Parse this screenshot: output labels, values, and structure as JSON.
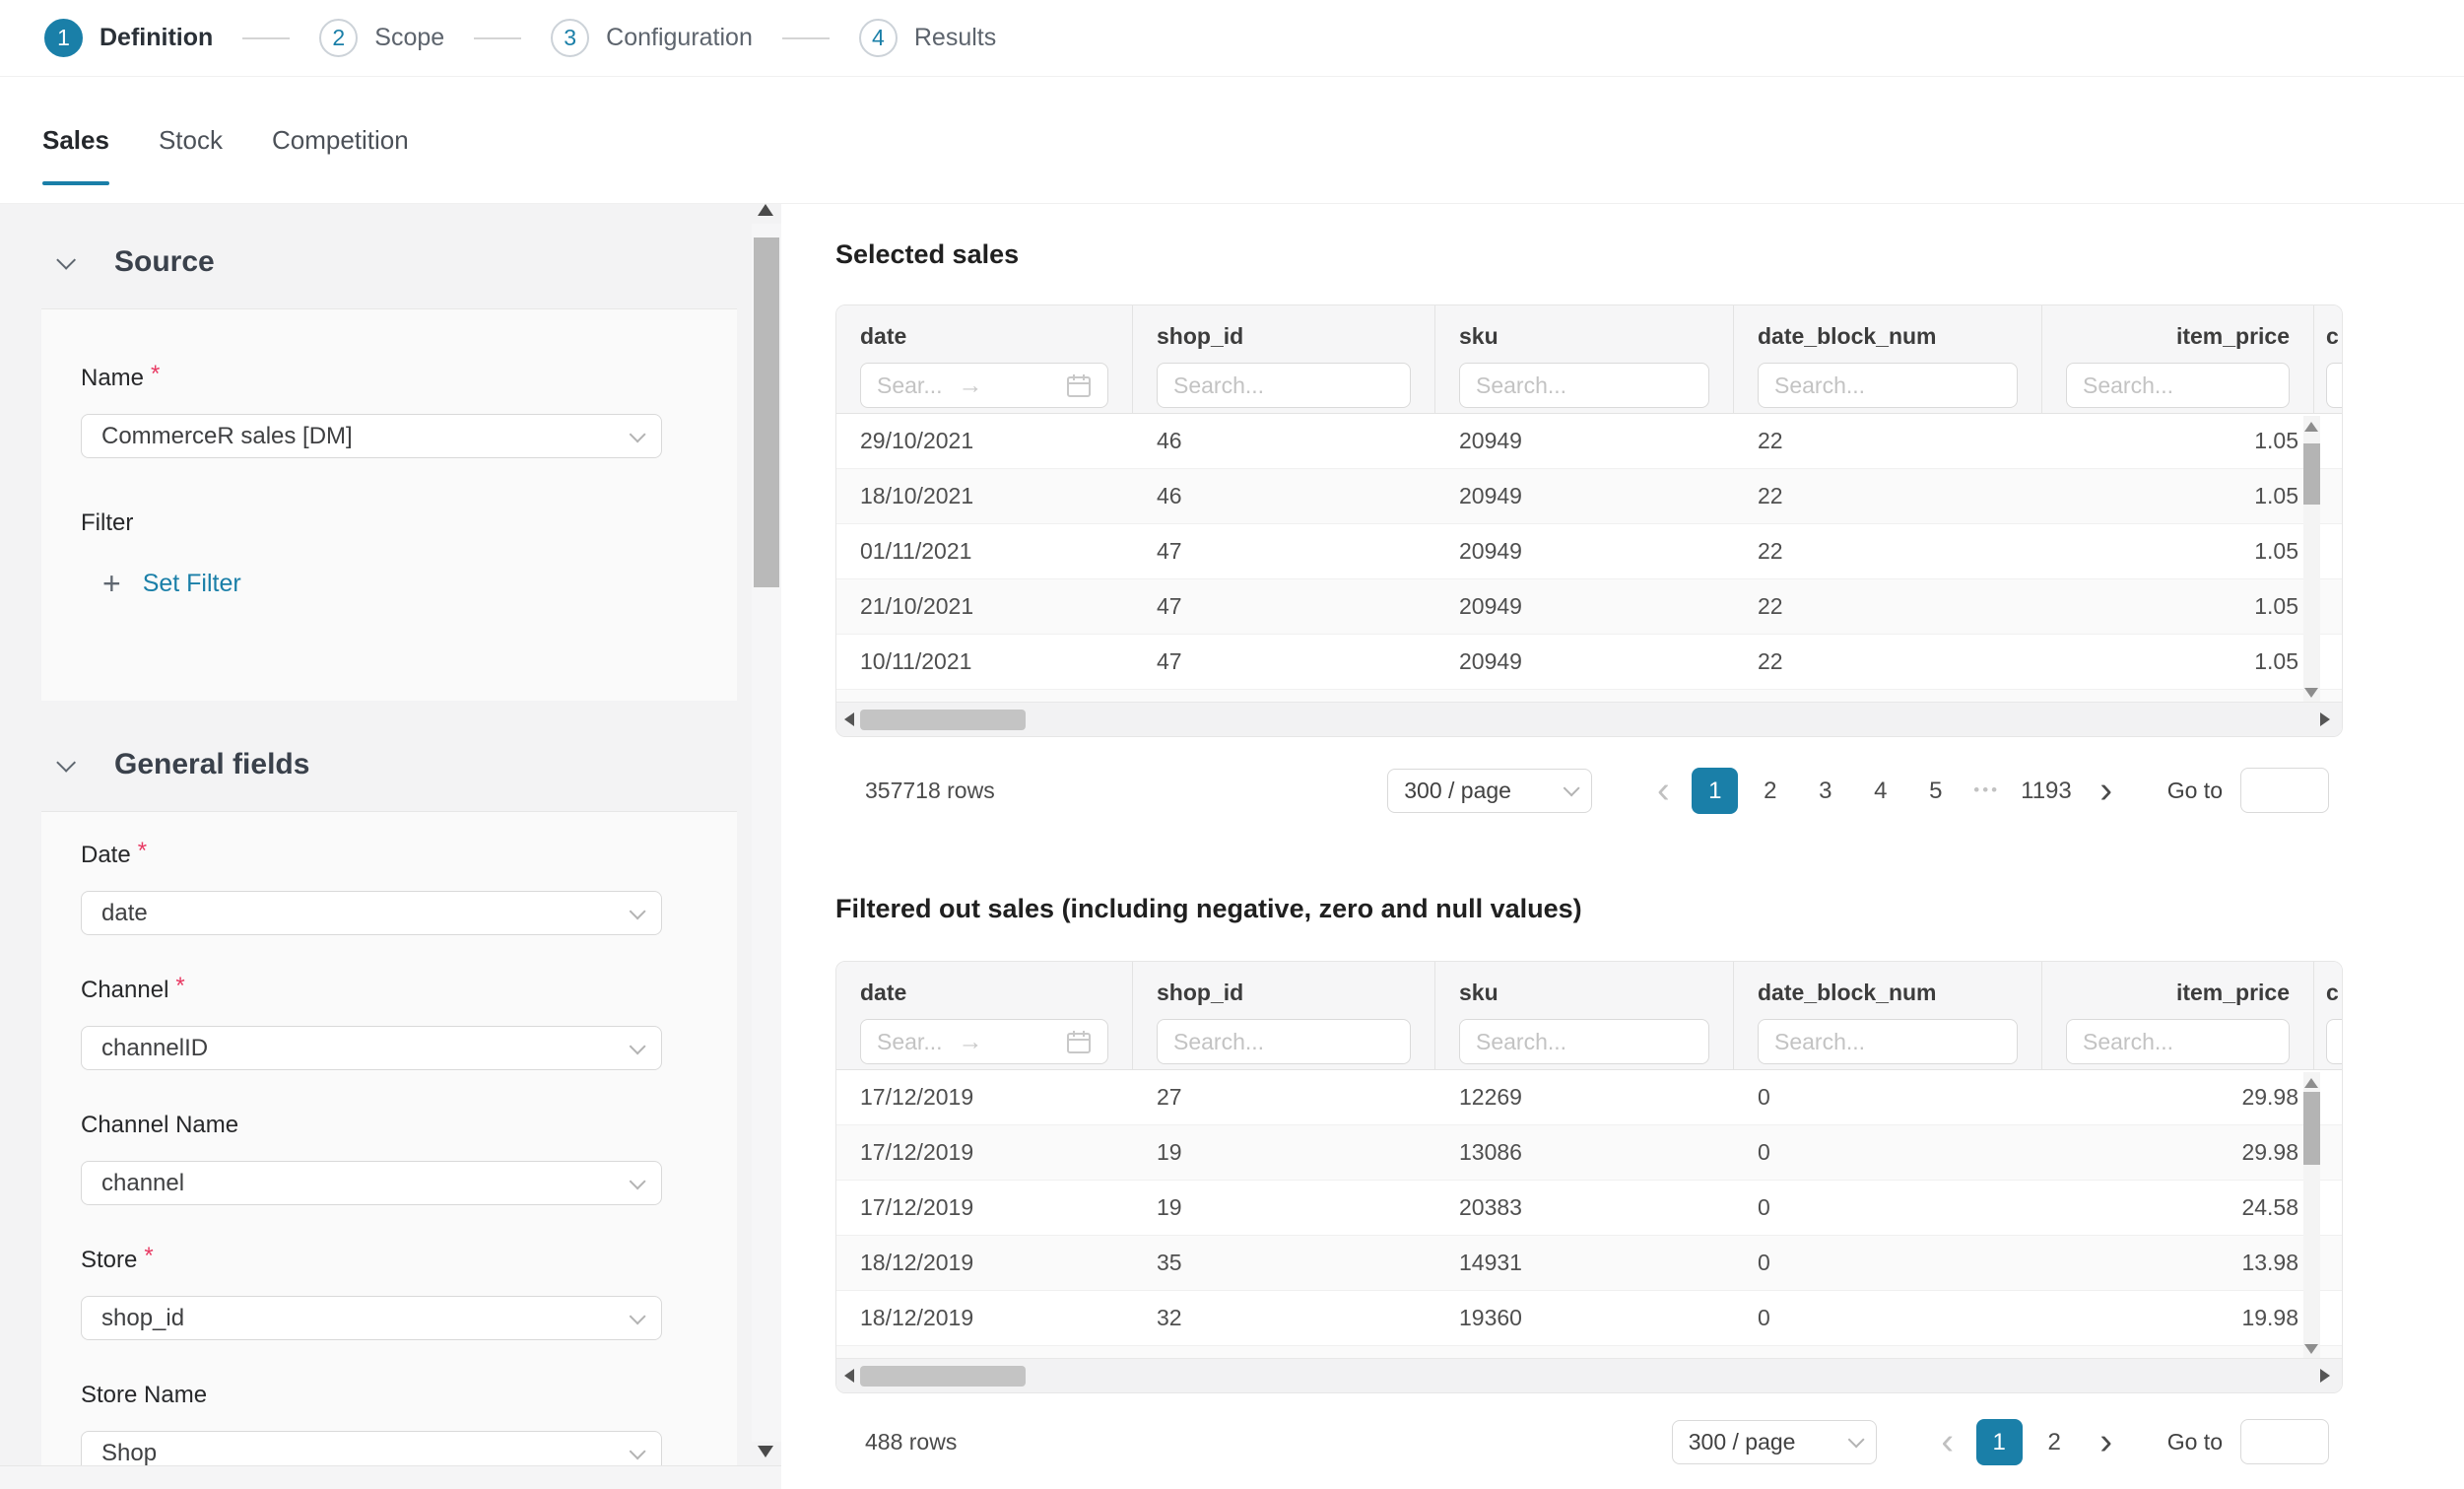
{
  "colors": {
    "primary": "#1a7fa8",
    "required_mark": "#e83a63"
  },
  "stepper": {
    "steps": [
      {
        "number": "1",
        "label": "Definition",
        "active": true
      },
      {
        "number": "2",
        "label": "Scope",
        "active": false
      },
      {
        "number": "3",
        "label": "Configuration",
        "active": false
      },
      {
        "number": "4",
        "label": "Results",
        "active": false
      }
    ]
  },
  "tabs": {
    "items": [
      {
        "label": "Sales",
        "active": true
      },
      {
        "label": "Stock",
        "active": false
      },
      {
        "label": "Competition",
        "active": false
      }
    ]
  },
  "sidebar": {
    "sections": [
      {
        "id": "source",
        "title": "Source",
        "fields": [
          {
            "label": "Name",
            "required": true,
            "control": "select",
            "value": "CommerceR sales [DM]"
          },
          {
            "label": "Filter",
            "required": false,
            "control": "link",
            "link_icon": "+",
            "link_label": "Set Filter"
          }
        ]
      },
      {
        "id": "general-fields",
        "title": "General fields",
        "fields": [
          {
            "label": "Date",
            "required": true,
            "control": "select",
            "value": "date"
          },
          {
            "label": "Channel",
            "required": true,
            "control": "select",
            "value": "channelID"
          },
          {
            "label": "Channel Name",
            "required": false,
            "control": "select",
            "value": "channel"
          },
          {
            "label": "Store",
            "required": true,
            "control": "select",
            "value": "shop_id"
          },
          {
            "label": "Store Name",
            "required": false,
            "control": "select",
            "value": "Shop"
          }
        ]
      }
    ]
  },
  "tables": [
    {
      "id": "selected-sales",
      "title": "Selected sales",
      "columns": [
        {
          "label": "date",
          "placeholder": "Sear...",
          "range_arrow": "→",
          "calendar_icon": true
        },
        {
          "label": "shop_id",
          "placeholder": "Search..."
        },
        {
          "label": "sku",
          "placeholder": "Search..."
        },
        {
          "label": "date_block_num",
          "placeholder": "Search..."
        },
        {
          "label": "item_price",
          "placeholder": "Search...",
          "align": "right"
        },
        {
          "label": "c",
          "truncated": true
        }
      ],
      "rows": [
        [
          "29/10/2021",
          "46",
          "20949",
          "22",
          "1.05"
        ],
        [
          "18/10/2021",
          "46",
          "20949",
          "22",
          "1.05"
        ],
        [
          "01/11/2021",
          "47",
          "20949",
          "22",
          "1.05"
        ],
        [
          "21/10/2021",
          "47",
          "20949",
          "22",
          "1.05"
        ],
        [
          "10/11/2021",
          "47",
          "20949",
          "22",
          "1.05"
        ]
      ],
      "pagination": {
        "total": "357718 rows",
        "page_size": "300 / page",
        "pages": [
          "1",
          "2",
          "3",
          "4",
          "5",
          "•••",
          "1193"
        ],
        "active_page": "1",
        "goto_label": "Go to"
      }
    },
    {
      "id": "filtered-sales",
      "title": "Filtered out sales (including negative, zero and null values)",
      "columns": [
        {
          "label": "date",
          "placeholder": "Sear...",
          "range_arrow": "→",
          "calendar_icon": true
        },
        {
          "label": "shop_id",
          "placeholder": "Search..."
        },
        {
          "label": "sku",
          "placeholder": "Search..."
        },
        {
          "label": "date_block_num",
          "placeholder": "Search..."
        },
        {
          "label": "item_price",
          "placeholder": "Search...",
          "align": "right"
        },
        {
          "label": "c",
          "truncated": true
        }
      ],
      "rows": [
        [
          "17/12/2019",
          "27",
          "12269",
          "0",
          "29.98"
        ],
        [
          "17/12/2019",
          "19",
          "13086",
          "0",
          "29.98"
        ],
        [
          "17/12/2019",
          "19",
          "20383",
          "0",
          "24.58"
        ],
        [
          "18/12/2019",
          "35",
          "14931",
          "0",
          "13.98"
        ],
        [
          "18/12/2019",
          "32",
          "19360",
          "0",
          "19.98"
        ]
      ],
      "pagination": {
        "total": "488 rows",
        "page_size": "300 / page",
        "pages": [
          "1",
          "2"
        ],
        "active_page": "1",
        "goto_label": "Go to"
      }
    }
  ]
}
